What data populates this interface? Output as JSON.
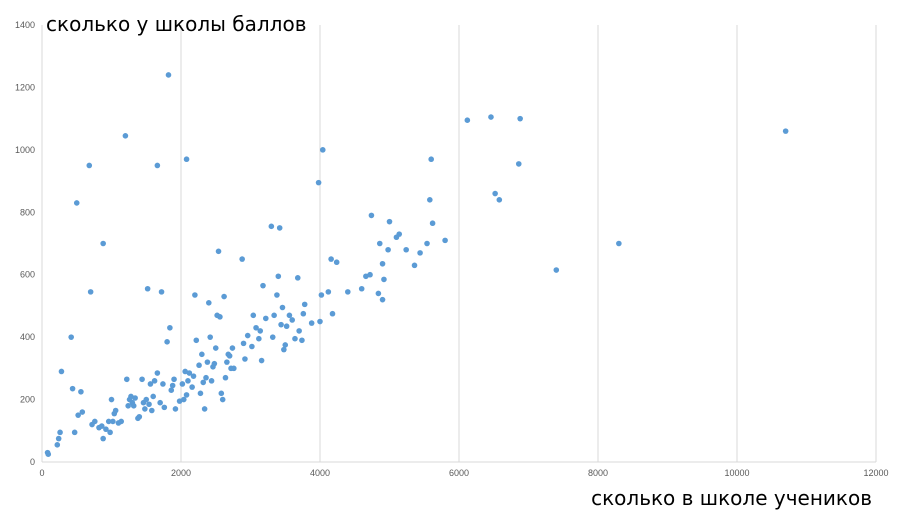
{
  "chart_data": {
    "type": "scatter",
    "title": "",
    "xlabel": "сколько в школе учеников",
    "ylabel": "сколько у школы баллов",
    "xlim": [
      0,
      12000
    ],
    "ylim": [
      0,
      1400
    ],
    "xticks": [
      0,
      2000,
      4000,
      6000,
      8000,
      10000,
      12000
    ],
    "yticks": [
      0,
      200,
      400,
      600,
      800,
      1000,
      1200,
      1400
    ],
    "grid": "vertical",
    "point_color": "#5B9BD5",
    "series": [
      {
        "points": [
          [
            80,
            30
          ],
          [
            90,
            25
          ],
          [
            220,
            55
          ],
          [
            240,
            75
          ],
          [
            260,
            95
          ],
          [
            280,
            290
          ],
          [
            420,
            400
          ],
          [
            440,
            235
          ],
          [
            470,
            95
          ],
          [
            500,
            830
          ],
          [
            520,
            150
          ],
          [
            560,
            225
          ],
          [
            580,
            160
          ],
          [
            680,
            950
          ],
          [
            700,
            545
          ],
          [
            720,
            120
          ],
          [
            760,
            130
          ],
          [
            820,
            110
          ],
          [
            860,
            115
          ],
          [
            880,
            700
          ],
          [
            880,
            75
          ],
          [
            920,
            105
          ],
          [
            960,
            130
          ],
          [
            980,
            95
          ],
          [
            1000,
            200
          ],
          [
            1020,
            130
          ],
          [
            1040,
            155
          ],
          [
            1060,
            165
          ],
          [
            1100,
            125
          ],
          [
            1140,
            130
          ],
          [
            1200,
            1045
          ],
          [
            1220,
            265
          ],
          [
            1240,
            180
          ],
          [
            1260,
            200
          ],
          [
            1280,
            210
          ],
          [
            1300,
            190
          ],
          [
            1320,
            180
          ],
          [
            1340,
            205
          ],
          [
            1380,
            140
          ],
          [
            1400,
            145
          ],
          [
            1440,
            265
          ],
          [
            1460,
            190
          ],
          [
            1480,
            170
          ],
          [
            1500,
            200
          ],
          [
            1520,
            555
          ],
          [
            1540,
            185
          ],
          [
            1560,
            250
          ],
          [
            1580,
            165
          ],
          [
            1600,
            210
          ],
          [
            1620,
            260
          ],
          [
            1660,
            950
          ],
          [
            1660,
            285
          ],
          [
            1700,
            190
          ],
          [
            1720,
            545
          ],
          [
            1740,
            250
          ],
          [
            1760,
            175
          ],
          [
            1800,
            385
          ],
          [
            1820,
            1240
          ],
          [
            1840,
            430
          ],
          [
            1860,
            230
          ],
          [
            1880,
            245
          ],
          [
            1900,
            265
          ],
          [
            1920,
            170
          ],
          [
            1980,
            195
          ],
          [
            2020,
            250
          ],
          [
            2040,
            200
          ],
          [
            2060,
            290
          ],
          [
            2080,
            970
          ],
          [
            2080,
            215
          ],
          [
            2100,
            260
          ],
          [
            2120,
            285
          ],
          [
            2160,
            240
          ],
          [
            2180,
            275
          ],
          [
            2200,
            535
          ],
          [
            2220,
            390
          ],
          [
            2260,
            310
          ],
          [
            2280,
            220
          ],
          [
            2300,
            345
          ],
          [
            2320,
            255
          ],
          [
            2340,
            170
          ],
          [
            2360,
            270
          ],
          [
            2380,
            320
          ],
          [
            2400,
            510
          ],
          [
            2420,
            400
          ],
          [
            2440,
            260
          ],
          [
            2460,
            305
          ],
          [
            2480,
            315
          ],
          [
            2500,
            365
          ],
          [
            2520,
            470
          ],
          [
            2540,
            675
          ],
          [
            2560,
            465
          ],
          [
            2580,
            220
          ],
          [
            2600,
            200
          ],
          [
            2620,
            530
          ],
          [
            2640,
            270
          ],
          [
            2660,
            320
          ],
          [
            2680,
            345
          ],
          [
            2700,
            340
          ],
          [
            2720,
            300
          ],
          [
            2740,
            365
          ],
          [
            2760,
            300
          ],
          [
            2880,
            650
          ],
          [
            2900,
            380
          ],
          [
            2920,
            330
          ],
          [
            2960,
            405
          ],
          [
            3020,
            370
          ],
          [
            3040,
            470
          ],
          [
            3080,
            430
          ],
          [
            3120,
            395
          ],
          [
            3140,
            420
          ],
          [
            3160,
            325
          ],
          [
            3180,
            565
          ],
          [
            3220,
            460
          ],
          [
            3300,
            755
          ],
          [
            3320,
            400
          ],
          [
            3340,
            470
          ],
          [
            3380,
            535
          ],
          [
            3400,
            595
          ],
          [
            3420,
            750
          ],
          [
            3440,
            440
          ],
          [
            3460,
            495
          ],
          [
            3480,
            360
          ],
          [
            3500,
            375
          ],
          [
            3520,
            435
          ],
          [
            3560,
            470
          ],
          [
            3600,
            455
          ],
          [
            3640,
            395
          ],
          [
            3680,
            590
          ],
          [
            3700,
            420
          ],
          [
            3740,
            390
          ],
          [
            3760,
            475
          ],
          [
            3780,
            505
          ],
          [
            3880,
            445
          ],
          [
            3980,
            895
          ],
          [
            4000,
            450
          ],
          [
            4020,
            535
          ],
          [
            4040,
            1000
          ],
          [
            4120,
            545
          ],
          [
            4160,
            650
          ],
          [
            4180,
            475
          ],
          [
            4240,
            640
          ],
          [
            4400,
            545
          ],
          [
            4600,
            555
          ],
          [
            4660,
            595
          ],
          [
            4720,
            600
          ],
          [
            4740,
            790
          ],
          [
            4840,
            540
          ],
          [
            4860,
            700
          ],
          [
            4900,
            520
          ],
          [
            4900,
            635
          ],
          [
            4920,
            585
          ],
          [
            4980,
            680
          ],
          [
            5000,
            770
          ],
          [
            5100,
            720
          ],
          [
            5140,
            730
          ],
          [
            5240,
            680
          ],
          [
            5360,
            630
          ],
          [
            5440,
            670
          ],
          [
            5540,
            700
          ],
          [
            5580,
            840
          ],
          [
            5600,
            970
          ],
          [
            5620,
            765
          ],
          [
            5800,
            710
          ],
          [
            6120,
            1095
          ],
          [
            6460,
            1105
          ],
          [
            6520,
            860
          ],
          [
            6580,
            840
          ],
          [
            6860,
            955
          ],
          [
            6880,
            1100
          ],
          [
            7400,
            615
          ],
          [
            8300,
            700
          ],
          [
            10700,
            1060
          ]
        ]
      }
    ]
  }
}
